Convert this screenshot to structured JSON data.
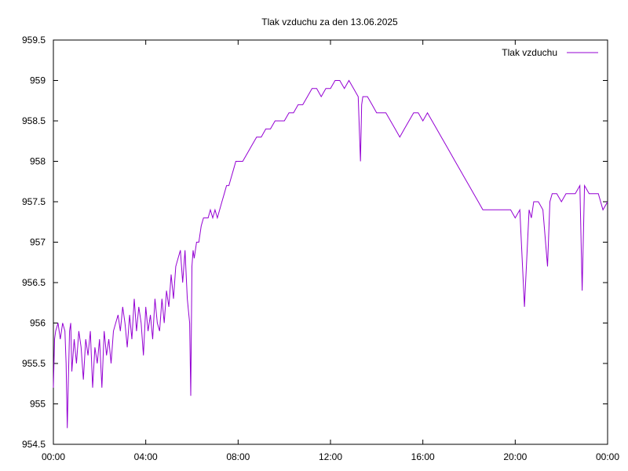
{
  "chart_data": {
    "type": "line",
    "title": "Tlak vzduchu za den 13.06.2025",
    "xlabel": "",
    "ylabel": "",
    "x_unit": "hours",
    "xlim": [
      0,
      24
    ],
    "ylim": [
      954.5,
      959.5
    ],
    "x_ticks": [
      {
        "value": 0,
        "label": "00:00"
      },
      {
        "value": 4,
        "label": "04:00"
      },
      {
        "value": 8,
        "label": "08:00"
      },
      {
        "value": 12,
        "label": "12:00"
      },
      {
        "value": 16,
        "label": "16:00"
      },
      {
        "value": 20,
        "label": "20:00"
      },
      {
        "value": 24,
        "label": "00:00"
      }
    ],
    "y_ticks": [
      {
        "value": 954.5,
        "label": "954.5"
      },
      {
        "value": 955,
        "label": "955"
      },
      {
        "value": 955.5,
        "label": "955.5"
      },
      {
        "value": 956,
        "label": "956"
      },
      {
        "value": 956.5,
        "label": "956.5"
      },
      {
        "value": 957,
        "label": "957"
      },
      {
        "value": 957.5,
        "label": "957.5"
      },
      {
        "value": 958,
        "label": "958"
      },
      {
        "value": 958.5,
        "label": "958.5"
      },
      {
        "value": 959,
        "label": "959"
      },
      {
        "value": 959.5,
        "label": "959.5"
      }
    ],
    "grid": false,
    "legend_position": "top-right",
    "series": [
      {
        "name": "Tlak vzduchu",
        "color": "#9400d3",
        "x": [
          0,
          0.05,
          0.1,
          0.2,
          0.3,
          0.4,
          0.5,
          0.55,
          0.6,
          0.65,
          0.7,
          0.75,
          0.8,
          0.9,
          1.0,
          1.1,
          1.2,
          1.3,
          1.4,
          1.5,
          1.6,
          1.7,
          1.8,
          1.9,
          2.0,
          2.1,
          2.2,
          2.3,
          2.4,
          2.5,
          2.6,
          2.7,
          2.8,
          2.9,
          3.0,
          3.1,
          3.2,
          3.3,
          3.4,
          3.5,
          3.6,
          3.7,
          3.8,
          3.9,
          4.0,
          4.1,
          4.2,
          4.3,
          4.4,
          4.5,
          4.6,
          4.7,
          4.8,
          4.9,
          5.0,
          5.1,
          5.2,
          5.3,
          5.4,
          5.5,
          5.6,
          5.7,
          5.8,
          5.9,
          5.95,
          6.0,
          6.05,
          6.1,
          6.2,
          6.3,
          6.4,
          6.5,
          6.6,
          6.7,
          6.8,
          6.9,
          7.0,
          7.1,
          7.2,
          7.3,
          7.4,
          7.5,
          7.6,
          7.7,
          7.8,
          7.9,
          8.0,
          8.2,
          8.4,
          8.6,
          8.8,
          9.0,
          9.2,
          9.4,
          9.6,
          9.8,
          10.0,
          10.2,
          10.4,
          10.6,
          10.8,
          11.0,
          11.2,
          11.4,
          11.6,
          11.8,
          12.0,
          12.2,
          12.4,
          12.6,
          12.8,
          13.0,
          13.2,
          13.3,
          13.35,
          13.4,
          13.6,
          13.8,
          14.0,
          14.2,
          14.4,
          14.6,
          14.8,
          15.0,
          15.2,
          15.4,
          15.6,
          15.8,
          16.0,
          16.2,
          16.4,
          16.6,
          16.8,
          17.0,
          17.2,
          17.4,
          17.6,
          17.8,
          18.0,
          18.2,
          18.4,
          18.6,
          18.8,
          19.0,
          19.2,
          19.4,
          19.6,
          19.8,
          20.0,
          20.2,
          20.4,
          20.6,
          20.7,
          20.8,
          21.0,
          21.2,
          21.4,
          21.5,
          21.6,
          21.8,
          22.0,
          22.2,
          22.4,
          22.6,
          22.8,
          22.9,
          23.0,
          23.2,
          23.4,
          23.6,
          23.8,
          24.0
        ],
        "values": [
          955.2,
          955.8,
          955.9,
          956.0,
          955.8,
          956.0,
          955.9,
          955.5,
          954.7,
          955.3,
          955.9,
          956.0,
          955.4,
          955.8,
          955.5,
          955.9,
          955.7,
          955.3,
          955.8,
          955.6,
          955.9,
          955.2,
          955.7,
          955.5,
          955.8,
          955.2,
          955.9,
          955.6,
          955.8,
          955.5,
          955.9,
          956.0,
          956.1,
          955.9,
          956.2,
          956.0,
          955.7,
          956.1,
          955.8,
          956.3,
          955.9,
          956.2,
          956.0,
          955.6,
          956.2,
          955.9,
          956.1,
          955.8,
          956.3,
          956.0,
          955.9,
          956.3,
          956.0,
          956.4,
          956.2,
          956.6,
          956.3,
          956.7,
          956.8,
          956.9,
          956.5,
          956.9,
          956.3,
          956.0,
          955.1,
          956.7,
          956.9,
          956.8,
          957.0,
          957.0,
          957.2,
          957.3,
          957.3,
          957.3,
          957.4,
          957.3,
          957.4,
          957.3,
          957.4,
          957.5,
          957.6,
          957.7,
          957.7,
          957.8,
          957.9,
          958.0,
          958.0,
          958.0,
          958.1,
          958.2,
          958.3,
          958.3,
          958.4,
          958.4,
          958.5,
          958.5,
          958.5,
          958.6,
          958.6,
          958.7,
          958.7,
          958.8,
          958.9,
          958.9,
          958.8,
          958.9,
          958.9,
          959.0,
          959.0,
          958.9,
          959.0,
          958.9,
          958.8,
          958.0,
          958.7,
          958.8,
          958.8,
          958.7,
          958.6,
          958.6,
          958.6,
          958.5,
          958.4,
          958.3,
          958.4,
          958.5,
          958.6,
          958.6,
          958.5,
          958.6,
          958.5,
          958.4,
          958.3,
          958.2,
          958.1,
          958.0,
          957.9,
          957.8,
          957.7,
          957.6,
          957.5,
          957.4,
          957.4,
          957.4,
          957.4,
          957.4,
          957.4,
          957.4,
          957.3,
          957.4,
          956.2,
          957.4,
          957.3,
          957.5,
          957.5,
          957.4,
          956.7,
          957.5,
          957.6,
          957.6,
          957.5,
          957.6,
          957.6,
          957.6,
          957.7,
          956.4,
          957.7,
          957.6,
          957.6,
          957.6,
          957.4,
          957.5
        ]
      }
    ]
  }
}
